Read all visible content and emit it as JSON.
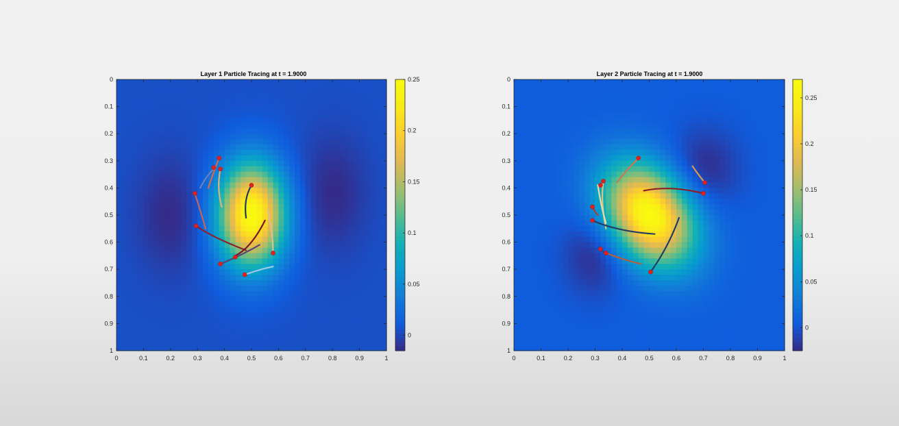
{
  "chart_data": [
    {
      "type": "heatmap",
      "title": "Layer 1 Particle Tracing at t = 1.9000",
      "xlim": [
        0,
        1
      ],
      "ylim": [
        0,
        1
      ],
      "y_reversed": true,
      "xticks": [
        "0",
        "0.1",
        "0.2",
        "0.3",
        "0.4",
        "0.5",
        "0.6",
        "0.7",
        "0.8",
        "0.9",
        "1"
      ],
      "yticks": [
        "0",
        "0.1",
        "0.2",
        "0.3",
        "0.4",
        "0.5",
        "0.6",
        "0.7",
        "0.8",
        "0.9",
        "1"
      ],
      "colorbar": {
        "min": -0.015,
        "max": 0.25,
        "ticks": [
          "0",
          "0.05",
          "0.1",
          "0.15",
          "0.2",
          "0.25"
        ],
        "tick_values": [
          0,
          0.05,
          0.1,
          0.15,
          0.2,
          0.25
        ]
      },
      "colormap": "parula",
      "field": {
        "peak": {
          "x": 0.5,
          "y": 0.5,
          "value": 0.25,
          "sx": 0.085,
          "sy": 0.13,
          "tilt_deg": 0
        },
        "troughs": [
          {
            "x": 0.2,
            "y": 0.5,
            "value": -0.015,
            "sx": 0.09,
            "sy": 0.15
          },
          {
            "x": 0.8,
            "y": 0.42,
            "value": -0.015,
            "sx": 0.09,
            "sy": 0.15
          }
        ],
        "background": 0.005
      },
      "trajectories": [
        {
          "points": [
            [
              0.38,
              0.29
            ],
            [
              0.36,
              0.34
            ],
            [
              0.34,
              0.4
            ]
          ],
          "color": "#d26a4b"
        },
        {
          "points": [
            [
              0.385,
              0.33
            ],
            [
              0.37,
              0.4
            ],
            [
              0.39,
              0.47
            ]
          ],
          "color": "#d9b37a"
        },
        {
          "points": [
            [
              0.29,
              0.42
            ],
            [
              0.31,
              0.48
            ],
            [
              0.33,
              0.55
            ]
          ],
          "color": "#c8625a"
        },
        {
          "points": [
            [
              0.295,
              0.54
            ],
            [
              0.35,
              0.58
            ],
            [
              0.48,
              0.63
            ]
          ],
          "color": "#8b2230"
        },
        {
          "points": [
            [
              0.5,
              0.39
            ],
            [
              0.47,
              0.44
            ],
            [
              0.48,
              0.51
            ]
          ],
          "color": "#1f3a66"
        },
        {
          "points": [
            [
              0.44,
              0.65
            ],
            [
              0.5,
              0.62
            ],
            [
              0.55,
              0.52
            ]
          ],
          "color": "#7a1620"
        },
        {
          "points": [
            [
              0.385,
              0.68
            ],
            [
              0.46,
              0.65
            ],
            [
              0.53,
              0.61
            ]
          ],
          "color": "#5a4770"
        },
        {
          "points": [
            [
              0.58,
              0.64
            ],
            [
              0.58,
              0.56
            ],
            [
              0.56,
              0.48
            ]
          ],
          "color": "#d9c28f"
        },
        {
          "points": [
            [
              0.475,
              0.72
            ],
            [
              0.53,
              0.7
            ],
            [
              0.58,
              0.69
            ]
          ],
          "color": "#9ec9e8"
        },
        {
          "points": [
            [
              0.36,
              0.33
            ],
            [
              0.33,
              0.36
            ],
            [
              0.31,
              0.4
            ]
          ],
          "color": "#6d7fb6"
        }
      ],
      "markers": [
        [
          0.38,
          0.29
        ],
        [
          0.36,
          0.325
        ],
        [
          0.385,
          0.33
        ],
        [
          0.29,
          0.42
        ],
        [
          0.5,
          0.39
        ],
        [
          0.295,
          0.54
        ],
        [
          0.44,
          0.655
        ],
        [
          0.385,
          0.68
        ],
        [
          0.58,
          0.64
        ],
        [
          0.475,
          0.72
        ]
      ]
    },
    {
      "type": "heatmap",
      "title": "Layer 2 Particle Tracing at t = 1.9000",
      "xlim": [
        0,
        1
      ],
      "ylim": [
        0,
        1
      ],
      "y_reversed": true,
      "xticks": [
        "0",
        "0.1",
        "0.2",
        "0.3",
        "0.4",
        "0.5",
        "0.6",
        "0.7",
        "0.8",
        "0.9",
        "1"
      ],
      "yticks": [
        "0",
        "0.1",
        "0.2",
        "0.3",
        "0.4",
        "0.5",
        "0.6",
        "0.7",
        "0.8",
        "0.9",
        "1"
      ],
      "colorbar": {
        "min": -0.025,
        "max": 0.27,
        "ticks": [
          "0",
          "0.05",
          "0.1",
          "0.15",
          "0.2",
          "0.25"
        ],
        "tick_values": [
          0,
          0.05,
          0.1,
          0.15,
          0.2,
          0.25
        ]
      },
      "colormap": "parula",
      "field": {
        "peak": {
          "x": 0.5,
          "y": 0.5,
          "value": 0.27,
          "sx": 0.1,
          "sy": 0.14,
          "tilt_deg": -35
        },
        "troughs": [
          {
            "x": 0.3,
            "y": 0.65,
            "value": -0.025,
            "sx": 0.08,
            "sy": 0.1
          },
          {
            "x": 0.7,
            "y": 0.33,
            "value": -0.025,
            "sx": 0.09,
            "sy": 0.1
          }
        ],
        "background": 0.005
      },
      "trajectories": [
        {
          "points": [
            [
              0.46,
              0.29
            ],
            [
              0.42,
              0.33
            ],
            [
              0.38,
              0.38
            ]
          ],
          "color": "#c77a54"
        },
        {
          "points": [
            [
              0.33,
              0.38
            ],
            [
              0.32,
              0.45
            ],
            [
              0.34,
              0.55
            ]
          ],
          "color": "#d8c37f"
        },
        {
          "points": [
            [
              0.29,
              0.47
            ],
            [
              0.3,
              0.49
            ],
            [
              0.31,
              0.5
            ]
          ],
          "color": "#aa3e3a"
        },
        {
          "points": [
            [
              0.31,
              0.39
            ],
            [
              0.32,
              0.46
            ],
            [
              0.34,
              0.53
            ]
          ],
          "color": "#e6dba6"
        },
        {
          "points": [
            [
              0.29,
              0.52
            ],
            [
              0.38,
              0.56
            ],
            [
              0.52,
              0.57
            ]
          ],
          "color": "#253c63"
        },
        {
          "points": [
            [
              0.48,
              0.41
            ],
            [
              0.58,
              0.39
            ],
            [
              0.7,
              0.42
            ]
          ],
          "color": "#8a1e27"
        },
        {
          "points": [
            [
              0.705,
              0.38
            ],
            [
              0.68,
              0.35
            ],
            [
              0.66,
              0.32
            ]
          ],
          "color": "#d89b54"
        },
        {
          "points": [
            [
              0.505,
              0.71
            ],
            [
              0.57,
              0.62
            ],
            [
              0.61,
              0.51
            ]
          ],
          "color": "#1f3d66"
        },
        {
          "points": [
            [
              0.34,
              0.64
            ],
            [
              0.42,
              0.67
            ],
            [
              0.47,
              0.68
            ]
          ],
          "color": "#b0623f"
        },
        {
          "points": [
            [
              0.32,
              0.63
            ],
            [
              0.34,
              0.64
            ]
          ],
          "color": "#2d4d7e"
        }
      ],
      "markers": [
        [
          0.46,
          0.29
        ],
        [
          0.33,
          0.375
        ],
        [
          0.32,
          0.39
        ],
        [
          0.29,
          0.47
        ],
        [
          0.29,
          0.52
        ],
        [
          0.705,
          0.38
        ],
        [
          0.7,
          0.42
        ],
        [
          0.505,
          0.71
        ],
        [
          0.34,
          0.64
        ],
        [
          0.32,
          0.625
        ]
      ]
    }
  ]
}
